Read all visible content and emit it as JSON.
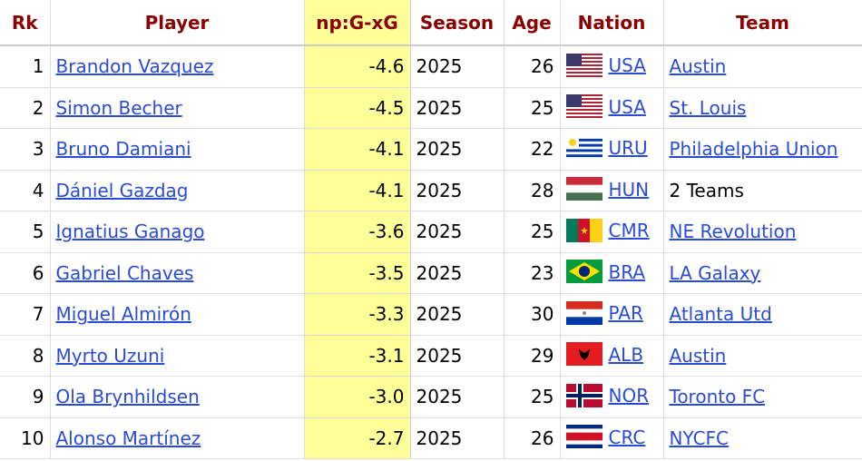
{
  "table": {
    "headers": [
      "Rk",
      "Player",
      "np:G-xG",
      "Season",
      "Age",
      "Nation",
      "Team"
    ],
    "rows": [
      {
        "rk": "1",
        "player": "Brandon Vazquez",
        "value": "-4.6",
        "season": "2025",
        "age": "26",
        "nation": "USA",
        "team": "Austin",
        "team_link": true
      },
      {
        "rk": "2",
        "player": "Simon Becher",
        "value": "-4.5",
        "season": "2025",
        "age": "25",
        "nation": "USA",
        "team": "St. Louis",
        "team_link": true
      },
      {
        "rk": "3",
        "player": "Bruno Damiani",
        "value": "-4.1",
        "season": "2025",
        "age": "22",
        "nation": "URU",
        "team": "Philadelphia Union",
        "team_link": true
      },
      {
        "rk": "4",
        "player": "Dániel Gazdag",
        "value": "-4.1",
        "season": "2025",
        "age": "28",
        "nation": "HUN",
        "team": "2 Teams",
        "team_link": false
      },
      {
        "rk": "5",
        "player": "Ignatius Ganago",
        "value": "-3.6",
        "season": "2025",
        "age": "25",
        "nation": "CMR",
        "team": "NE Revolution",
        "team_link": true
      },
      {
        "rk": "6",
        "player": "Gabriel Chaves",
        "value": "-3.5",
        "season": "2025",
        "age": "23",
        "nation": "BRA",
        "team": "LA Galaxy",
        "team_link": true
      },
      {
        "rk": "7",
        "player": "Miguel Almirón",
        "value": "-3.3",
        "season": "2025",
        "age": "30",
        "nation": "PAR",
        "team": "Atlanta Utd",
        "team_link": true
      },
      {
        "rk": "8",
        "player": "Myrto Uzuni",
        "value": "-3.1",
        "season": "2025",
        "age": "29",
        "nation": "ALB",
        "team": "Austin",
        "team_link": true
      },
      {
        "rk": "9",
        "player": "Ola Brynhildsen",
        "value": "-3.0",
        "season": "2025",
        "age": "25",
        "nation": "NOR",
        "team": "Toronto FC",
        "team_link": true
      },
      {
        "rk": "10",
        "player": "Alonso Martínez",
        "value": "-2.7",
        "season": "2025",
        "age": "26",
        "nation": "CRC",
        "team": "NYCFC",
        "team_link": true
      }
    ]
  }
}
